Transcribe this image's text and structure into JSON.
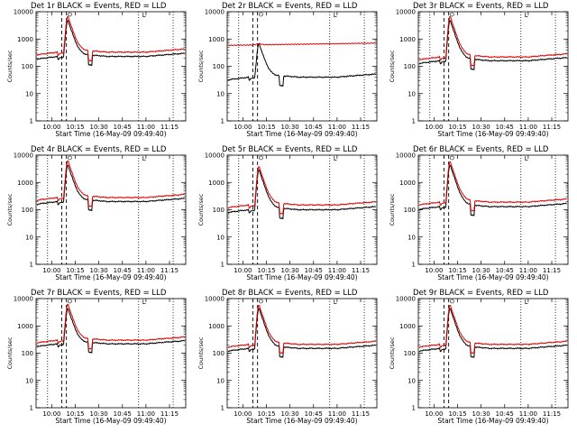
{
  "chart_data": [
    {
      "type": "line",
      "title": "Det 1r BLACK = Events, RED = LLD",
      "xlabel": "Start Time (16-May-09 09:49:40)",
      "ylabel": "Counts/sec",
      "xlim": [
        "09:49:40",
        "11:25:00"
      ],
      "ylim": [
        1,
        10000
      ],
      "yscale": "log",
      "flare_peak": "10:10",
      "series": [
        {
          "name": "Events",
          "color": "#000000",
          "baseline": 230,
          "peak": 5000
        },
        {
          "name": "LLD",
          "color": "#e00000",
          "baseline": 330,
          "peak": 7000
        }
      ]
    },
    {
      "type": "line",
      "title": "Det 2r BLACK = Events, RED = LLD",
      "xlabel": "Start Time (16-May-09 09:49:40)",
      "ylabel": "Counts/sec",
      "xlim": [
        "09:49:40",
        "11:25:00"
      ],
      "ylim": [
        1,
        10000
      ],
      "yscale": "log",
      "flare_peak": "10:10",
      "series": [
        {
          "name": "Events",
          "color": "#000000",
          "baseline": 40,
          "peak": 700
        },
        {
          "name": "LLD",
          "color": "#e00000",
          "baseline": 650,
          "peak": 780
        }
      ]
    },
    {
      "type": "line",
      "title": "Det 3r BLACK = Events, RED = LLD",
      "xlabel": "Start Time (16-May-09 09:49:40)",
      "ylabel": "Counts/sec",
      "xlim": [
        "09:49:40",
        "11:25:00"
      ],
      "ylim": [
        1,
        10000
      ],
      "yscale": "log",
      "flare_peak": "10:10",
      "series": [
        {
          "name": "Events",
          "color": "#000000",
          "baseline": 160,
          "peak": 5000
        },
        {
          "name": "LLD",
          "color": "#e00000",
          "baseline": 220,
          "peak": 7000
        }
      ]
    },
    {
      "type": "line",
      "title": "Det 4r BLACK = Events, RED = LLD",
      "xlabel": "Start Time (16-May-09 09:49:40)",
      "ylabel": "Counts/sec",
      "xlim": [
        "09:49:40",
        "11:25:00"
      ],
      "ylim": [
        1,
        10000
      ],
      "yscale": "log",
      "flare_peak": "10:10",
      "series": [
        {
          "name": "Events",
          "color": "#000000",
          "baseline": 200,
          "peak": 4500
        },
        {
          "name": "LLD",
          "color": "#e00000",
          "baseline": 280,
          "peak": 6500
        }
      ]
    },
    {
      "type": "line",
      "title": "Det 5r BLACK = Events, RED = LLD",
      "xlabel": "Start Time (16-May-09 09:49:40)",
      "ylabel": "Counts/sec",
      "xlim": [
        "09:49:40",
        "11:25:00"
      ],
      "ylim": [
        1,
        10000
      ],
      "yscale": "log",
      "flare_peak": "10:10",
      "series": [
        {
          "name": "Events",
          "color": "#000000",
          "baseline": 100,
          "peak": 3000
        },
        {
          "name": "LLD",
          "color": "#e00000",
          "baseline": 150,
          "peak": 4000
        }
      ]
    },
    {
      "type": "line",
      "title": "Det 6r BLACK = Events, RED = LLD",
      "xlabel": "Start Time (16-May-09 09:49:40)",
      "ylabel": "Counts/sec",
      "xlim": [
        "09:49:40",
        "11:25:00"
      ],
      "ylim": [
        1,
        10000
      ],
      "yscale": "log",
      "flare_peak": "10:10",
      "series": [
        {
          "name": "Events",
          "color": "#000000",
          "baseline": 130,
          "peak": 4500
        },
        {
          "name": "LLD",
          "color": "#e00000",
          "baseline": 190,
          "peak": 6000
        }
      ]
    },
    {
      "type": "line",
      "title": "Det 7r BLACK = Events, RED = LLD",
      "xlabel": "Start Time (16-May-09 09:49:40)",
      "ylabel": "Counts/sec",
      "xlim": [
        "09:49:40",
        "11:25:00"
      ],
      "ylim": [
        1,
        10000
      ],
      "yscale": "log",
      "flare_peak": "10:10",
      "series": [
        {
          "name": "Events",
          "color": "#000000",
          "baseline": 220,
          "peak": 4500
        },
        {
          "name": "LLD",
          "color": "#e00000",
          "baseline": 300,
          "peak": 6500
        }
      ]
    },
    {
      "type": "line",
      "title": "Det 8r BLACK = Events, RED = LLD",
      "xlabel": "Start Time (16-May-09 09:49:40)",
      "ylabel": "Counts/sec",
      "xlim": [
        "09:49:40",
        "11:25:00"
      ],
      "ylim": [
        1,
        10000
      ],
      "yscale": "log",
      "flare_peak": "10:10",
      "series": [
        {
          "name": "Events",
          "color": "#000000",
          "baseline": 150,
          "peak": 4500
        },
        {
          "name": "LLD",
          "color": "#e00000",
          "baseline": 210,
          "peak": 6000
        }
      ]
    },
    {
      "type": "line",
      "title": "Det 9r BLACK = Events, RED = LLD",
      "xlabel": "Start Time (16-May-09 09:49:40)",
      "ylabel": "Counts/sec",
      "xlim": [
        "09:49:40",
        "11:25:00"
      ],
      "ylim": [
        1,
        10000
      ],
      "yscale": "log",
      "flare_peak": "10:10",
      "series": [
        {
          "name": "Events",
          "color": "#000000",
          "baseline": 150,
          "peak": 4500
        },
        {
          "name": "LLD",
          "color": "#e00000",
          "baseline": 210,
          "peak": 6000
        }
      ]
    }
  ],
  "x_ticks": [
    "10:00",
    "10:15",
    "10:30",
    "10:45",
    "11:00",
    "11:15"
  ],
  "y_ticks": [
    "1",
    "10",
    "100",
    "1000",
    "10000"
  ],
  "marker_label": "L",
  "ticks_minutes": [
    10,
    25,
    40,
    55,
    70,
    85
  ],
  "x_range_minutes": [
    0,
    95.33
  ],
  "vertical_markers": {
    "dotted": [
      "09:57",
      "10:55",
      "11:17"
    ],
    "dashed": [
      "10:06",
      "10:09"
    ]
  }
}
